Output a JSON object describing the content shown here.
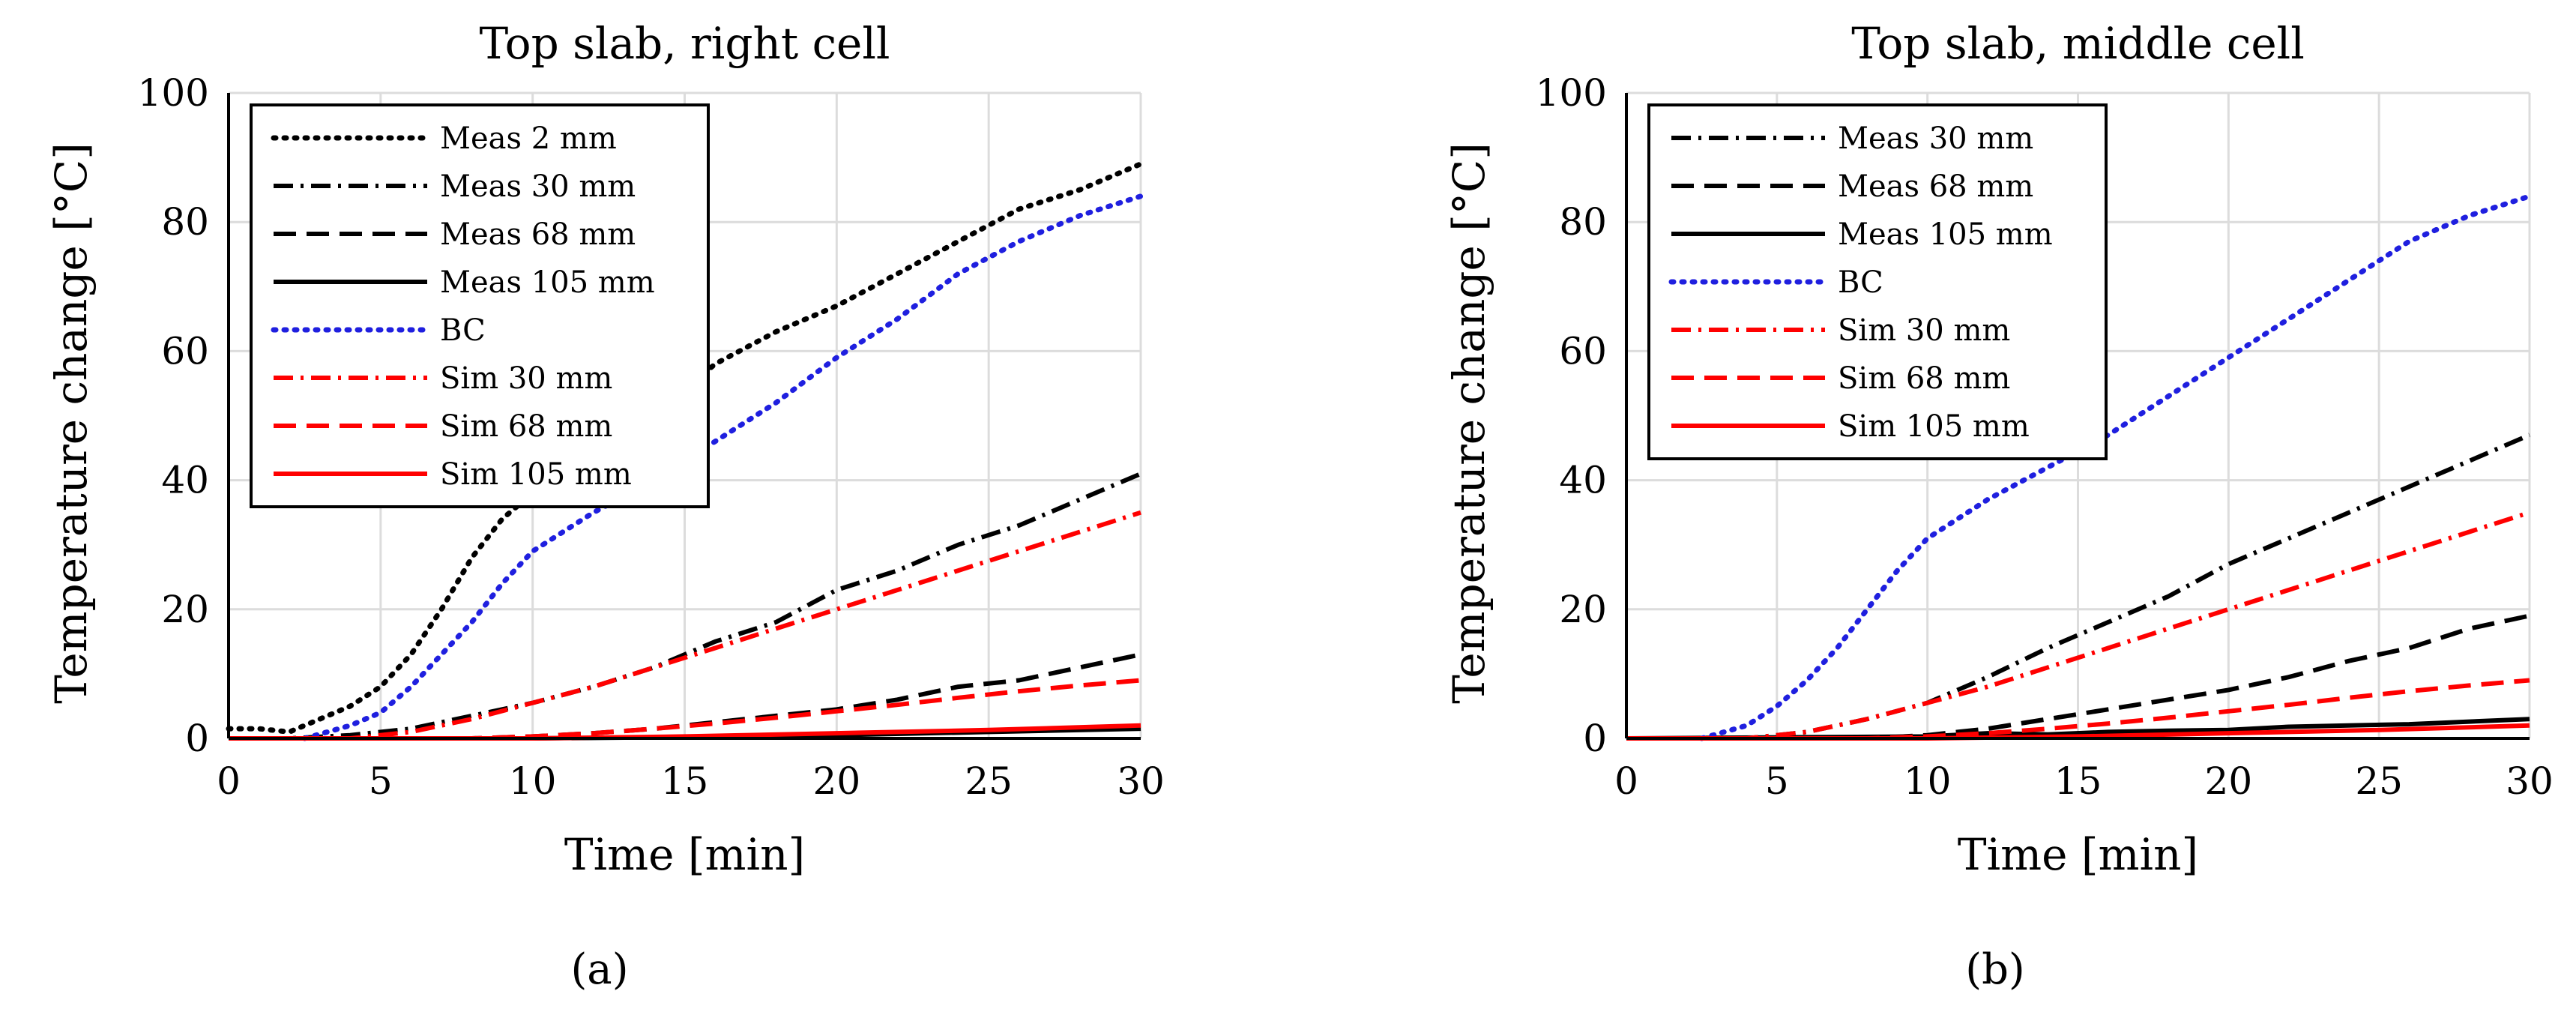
{
  "figure": {
    "panels": [
      {
        "caption": "(a)"
      },
      {
        "caption": "(b)"
      }
    ]
  },
  "chart_data": [
    {
      "type": "line",
      "title": "Top slab, right cell",
      "xlabel": "Time [min]",
      "ylabel": "Temperature change [°C]",
      "xlim": [
        0,
        30
      ],
      "ylim": [
        0,
        100
      ],
      "xticks": [
        0,
        5,
        10,
        15,
        20,
        25,
        30
      ],
      "yticks": [
        0,
        20,
        40,
        60,
        80,
        100
      ],
      "grid": true,
      "legend_position": "top-left",
      "series": [
        {
          "name": "Meas 2 mm",
          "color": "#000000",
          "style": "dotted",
          "x": [
            0,
            1,
            2,
            3,
            4,
            5,
            6,
            7,
            8,
            9,
            10,
            12,
            14,
            16,
            18,
            20,
            22,
            24,
            26,
            28,
            30
          ],
          "y": [
            1.5,
            1.5,
            1,
            3,
            5,
            8,
            13,
            20,
            28,
            34,
            38,
            44,
            50,
            58,
            63,
            67,
            72,
            77,
            82,
            85,
            89
          ]
        },
        {
          "name": "Meas 30 mm",
          "color": "#000000",
          "style": "dashdot",
          "x": [
            0,
            2,
            4,
            6,
            8,
            10,
            12,
            14,
            16,
            18,
            20,
            22,
            24,
            26,
            28,
            30
          ],
          "y": [
            0,
            0,
            0.5,
            1.5,
            3.5,
            5.5,
            8,
            11,
            15,
            18,
            23,
            26,
            30,
            33,
            37,
            41
          ]
        },
        {
          "name": "Meas 68 mm",
          "color": "#000000",
          "style": "dashed",
          "x": [
            0,
            6,
            8,
            10,
            12,
            14,
            16,
            18,
            20,
            22,
            24,
            26,
            28,
            30
          ],
          "y": [
            0,
            0,
            0,
            0.3,
            0.8,
            1.5,
            2.5,
            3.5,
            4.5,
            6,
            8,
            9,
            11,
            13
          ]
        },
        {
          "name": "Meas 105 mm",
          "color": "#000000",
          "style": "solid",
          "x": [
            0,
            10,
            15,
            20,
            25,
            30
          ],
          "y": [
            0,
            0,
            0.2,
            0.5,
            1,
            1.5
          ]
        },
        {
          "name": "BC",
          "color": "#1f1fdf",
          "style": "dotted",
          "x": [
            2.5,
            4,
            5,
            6,
            7,
            8,
            9,
            10,
            12,
            14,
            16,
            18,
            20,
            22,
            24,
            26,
            28,
            30
          ],
          "y": [
            0,
            2,
            4,
            8,
            13,
            18,
            24,
            29,
            35,
            40,
            46,
            52,
            59,
            65,
            72,
            77,
            81,
            84
          ]
        },
        {
          "name": "Sim 30 mm",
          "color": "#ff0000",
          "style": "dashdot",
          "x": [
            0,
            4,
            6,
            8,
            10,
            12,
            14,
            16,
            18,
            20,
            22,
            24,
            26,
            28,
            30
          ],
          "y": [
            0,
            0,
            1,
            3,
            5.5,
            8,
            11,
            14,
            17,
            20,
            23,
            26,
            29,
            32,
            35
          ]
        },
        {
          "name": "Sim 68 mm",
          "color": "#ff0000",
          "style": "dashed",
          "x": [
            0,
            8,
            10,
            12,
            14,
            16,
            18,
            20,
            22,
            24,
            26,
            28,
            30
          ],
          "y": [
            0,
            0,
            0.3,
            0.8,
            1.5,
            2.3,
            3.2,
            4.2,
            5.2,
            6.3,
            7.3,
            8.2,
            9
          ]
        },
        {
          "name": "Sim 105 mm",
          "color": "#ff0000",
          "style": "solid",
          "x": [
            0,
            10,
            15,
            20,
            25,
            30
          ],
          "y": [
            0,
            0,
            0.3,
            0.8,
            1.3,
            2
          ]
        }
      ]
    },
    {
      "type": "line",
      "title": "Top slab, middle cell",
      "xlabel": "Time [min]",
      "ylabel": "Temperature change [°C]",
      "xlim": [
        0,
        30
      ],
      "ylim": [
        0,
        100
      ],
      "xticks": [
        0,
        5,
        10,
        15,
        20,
        25,
        30
      ],
      "yticks": [
        0,
        20,
        40,
        60,
        80,
        100
      ],
      "grid": true,
      "legend_position": "top-left",
      "series": [
        {
          "name": "Meas 30 mm",
          "color": "#000000",
          "style": "dashdot",
          "x": [
            0,
            4,
            6,
            8,
            10,
            12,
            14,
            16,
            18,
            20,
            22,
            24,
            26,
            28,
            30
          ],
          "y": [
            0,
            0,
            1,
            3,
            5.5,
            9.5,
            14,
            18,
            22,
            27,
            31,
            35,
            39,
            43,
            47
          ]
        },
        {
          "name": "Meas 68 mm",
          "color": "#000000",
          "style": "dashed",
          "x": [
            0,
            8,
            10,
            12,
            14,
            16,
            18,
            20,
            22,
            24,
            26,
            28,
            30
          ],
          "y": [
            0,
            0,
            0.5,
            1.5,
            3,
            4.5,
            6,
            7.5,
            9.5,
            12,
            14,
            17,
            19
          ]
        },
        {
          "name": "Meas 105 mm",
          "color": "#000000",
          "style": "solid",
          "x": [
            0,
            10,
            12,
            14,
            16,
            18,
            20,
            22,
            24,
            26,
            28,
            30
          ],
          "y": [
            0,
            0.3,
            0.8,
            0.6,
            1,
            1.2,
            1.3,
            1.8,
            2,
            2.2,
            2.6,
            3
          ]
        },
        {
          "name": "BC",
          "color": "#1f1fdf",
          "style": "dotted",
          "x": [
            2.5,
            4,
            5,
            6,
            7,
            8,
            9,
            10,
            11,
            12,
            14,
            16,
            18,
            20,
            22,
            24,
            26,
            28,
            30
          ],
          "y": [
            0,
            2,
            5,
            9,
            14,
            20,
            26,
            31,
            34,
            37,
            42,
            47,
            53,
            59,
            65,
            71,
            77,
            81,
            84
          ]
        },
        {
          "name": "Sim 30 mm",
          "color": "#ff0000",
          "style": "dashdot",
          "x": [
            0,
            4,
            6,
            8,
            10,
            12,
            14,
            16,
            18,
            20,
            22,
            24,
            26,
            28,
            30
          ],
          "y": [
            0,
            0,
            1,
            3,
            5.5,
            8,
            11,
            14,
            17,
            20,
            23,
            26,
            29,
            32,
            35
          ]
        },
        {
          "name": "Sim 68 mm",
          "color": "#ff0000",
          "style": "dashed",
          "x": [
            0,
            8,
            10,
            12,
            14,
            16,
            18,
            20,
            22,
            24,
            26,
            28,
            30
          ],
          "y": [
            0,
            0,
            0.3,
            0.8,
            1.5,
            2.3,
            3.2,
            4.2,
            5.2,
            6.3,
            7.3,
            8.2,
            9
          ]
        },
        {
          "name": "Sim 105 mm",
          "color": "#ff0000",
          "style": "solid",
          "x": [
            0,
            10,
            15,
            20,
            25,
            30
          ],
          "y": [
            0,
            0,
            0.3,
            0.8,
            1.3,
            2
          ]
        }
      ]
    }
  ]
}
